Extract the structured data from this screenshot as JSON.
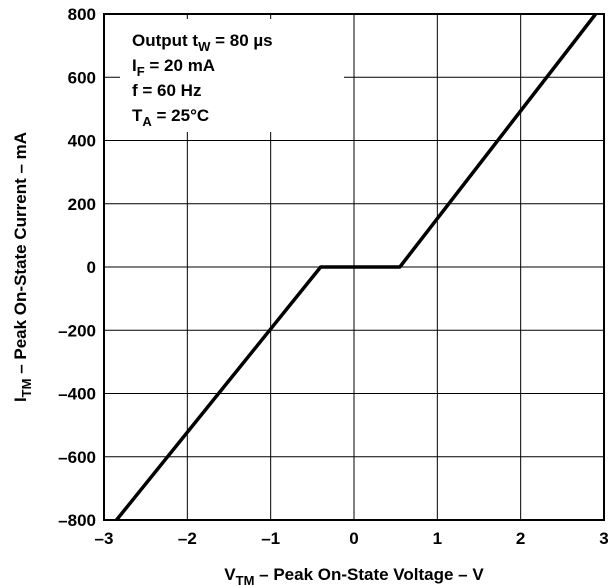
{
  "chart_data": {
    "type": "line",
    "title": "",
    "xlabel": {
      "symbol": "V",
      "subscript": "TM",
      "text": " – Peak On-State Voltage – V"
    },
    "ylabel": {
      "symbol": "I",
      "subscript": "TM",
      "text": " – Peak On-State Current – mA"
    },
    "xlim": [
      -3,
      3
    ],
    "ylim": [
      -800,
      800
    ],
    "x_ticks": [
      -3,
      -2,
      -1,
      0,
      1,
      2,
      3
    ],
    "y_ticks": [
      -800,
      -600,
      -400,
      -200,
      0,
      200,
      400,
      600,
      800
    ],
    "x_tick_labels": [
      "–3",
      "–2",
      "–1",
      "0",
      "1",
      "2",
      "3"
    ],
    "y_tick_labels": [
      "–800",
      "–600",
      "–400",
      "–200",
      "0",
      "200",
      "400",
      "600",
      "800"
    ],
    "grid": true,
    "series": [
      {
        "x": [
          -2.85,
          -0.4,
          0.55,
          2.9
        ],
        "y": [
          -800,
          0,
          0,
          800
        ]
      }
    ],
    "conditions": [
      {
        "pre": "Output t",
        "sub": "W",
        "post": " = 80 µs"
      },
      {
        "pre": "I",
        "sub": "F",
        "post": " = 20 mA"
      },
      {
        "pre": "f = 60 Hz",
        "sub": "",
        "post": ""
      },
      {
        "pre": "T",
        "sub": "A",
        "post": " = 25°C"
      }
    ]
  }
}
